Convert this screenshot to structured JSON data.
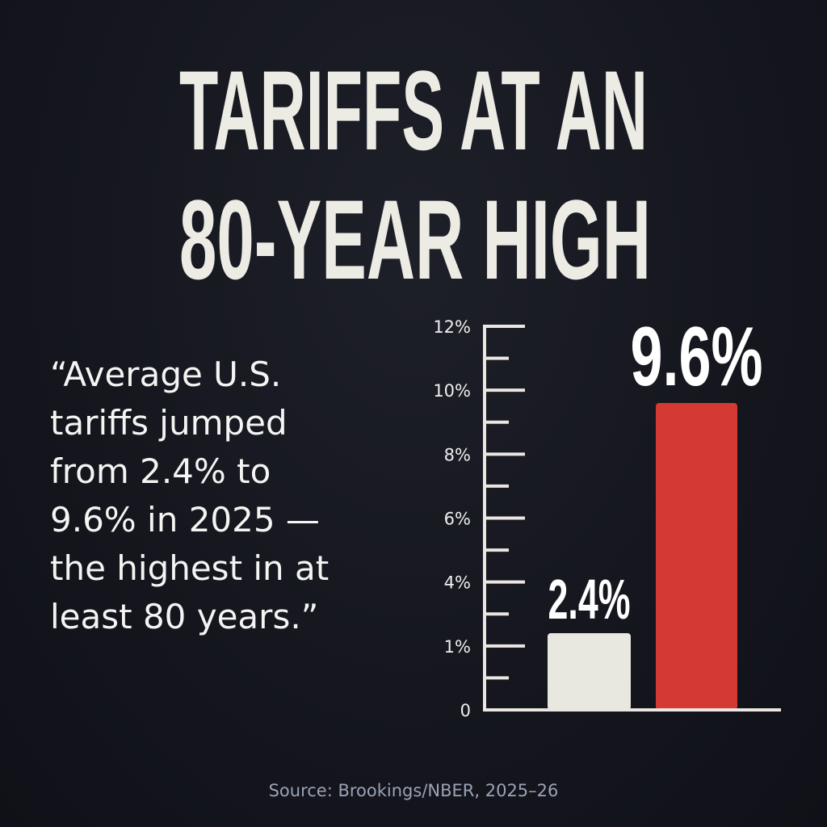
{
  "title": {
    "line1": "TARIFFS AT AN",
    "line2": "80-YEAR HIGH"
  },
  "quote": {
    "lines": [
      "“Average U.S.",
      "tariffs jumped",
      "from 2.4% to",
      "9.6% in 2025 —",
      "the highest in at",
      "least 80 years.”"
    ]
  },
  "chart_data": {
    "type": "bar",
    "categories": [
      "",
      ""
    ],
    "values": [
      2.4,
      9.6
    ],
    "data_labels": [
      "2.4%",
      "9.6%"
    ],
    "bar_colors": [
      "#e8e8e0",
      "#d43a33"
    ],
    "y_tick_labels": [
      "0",
      "1%",
      "4%",
      "6%",
      "8%",
      "10%",
      "12%"
    ],
    "ylim": [
      0,
      12
    ],
    "title": "",
    "xlabel": "",
    "ylabel": "",
    "grid": false,
    "legend": "none"
  },
  "source": "Source: Brookings/NBER, 2025–26",
  "colors": {
    "background": "#14151d",
    "accent": "#d43a33",
    "text": "#ecebe4",
    "source": "#9aa3b5"
  }
}
